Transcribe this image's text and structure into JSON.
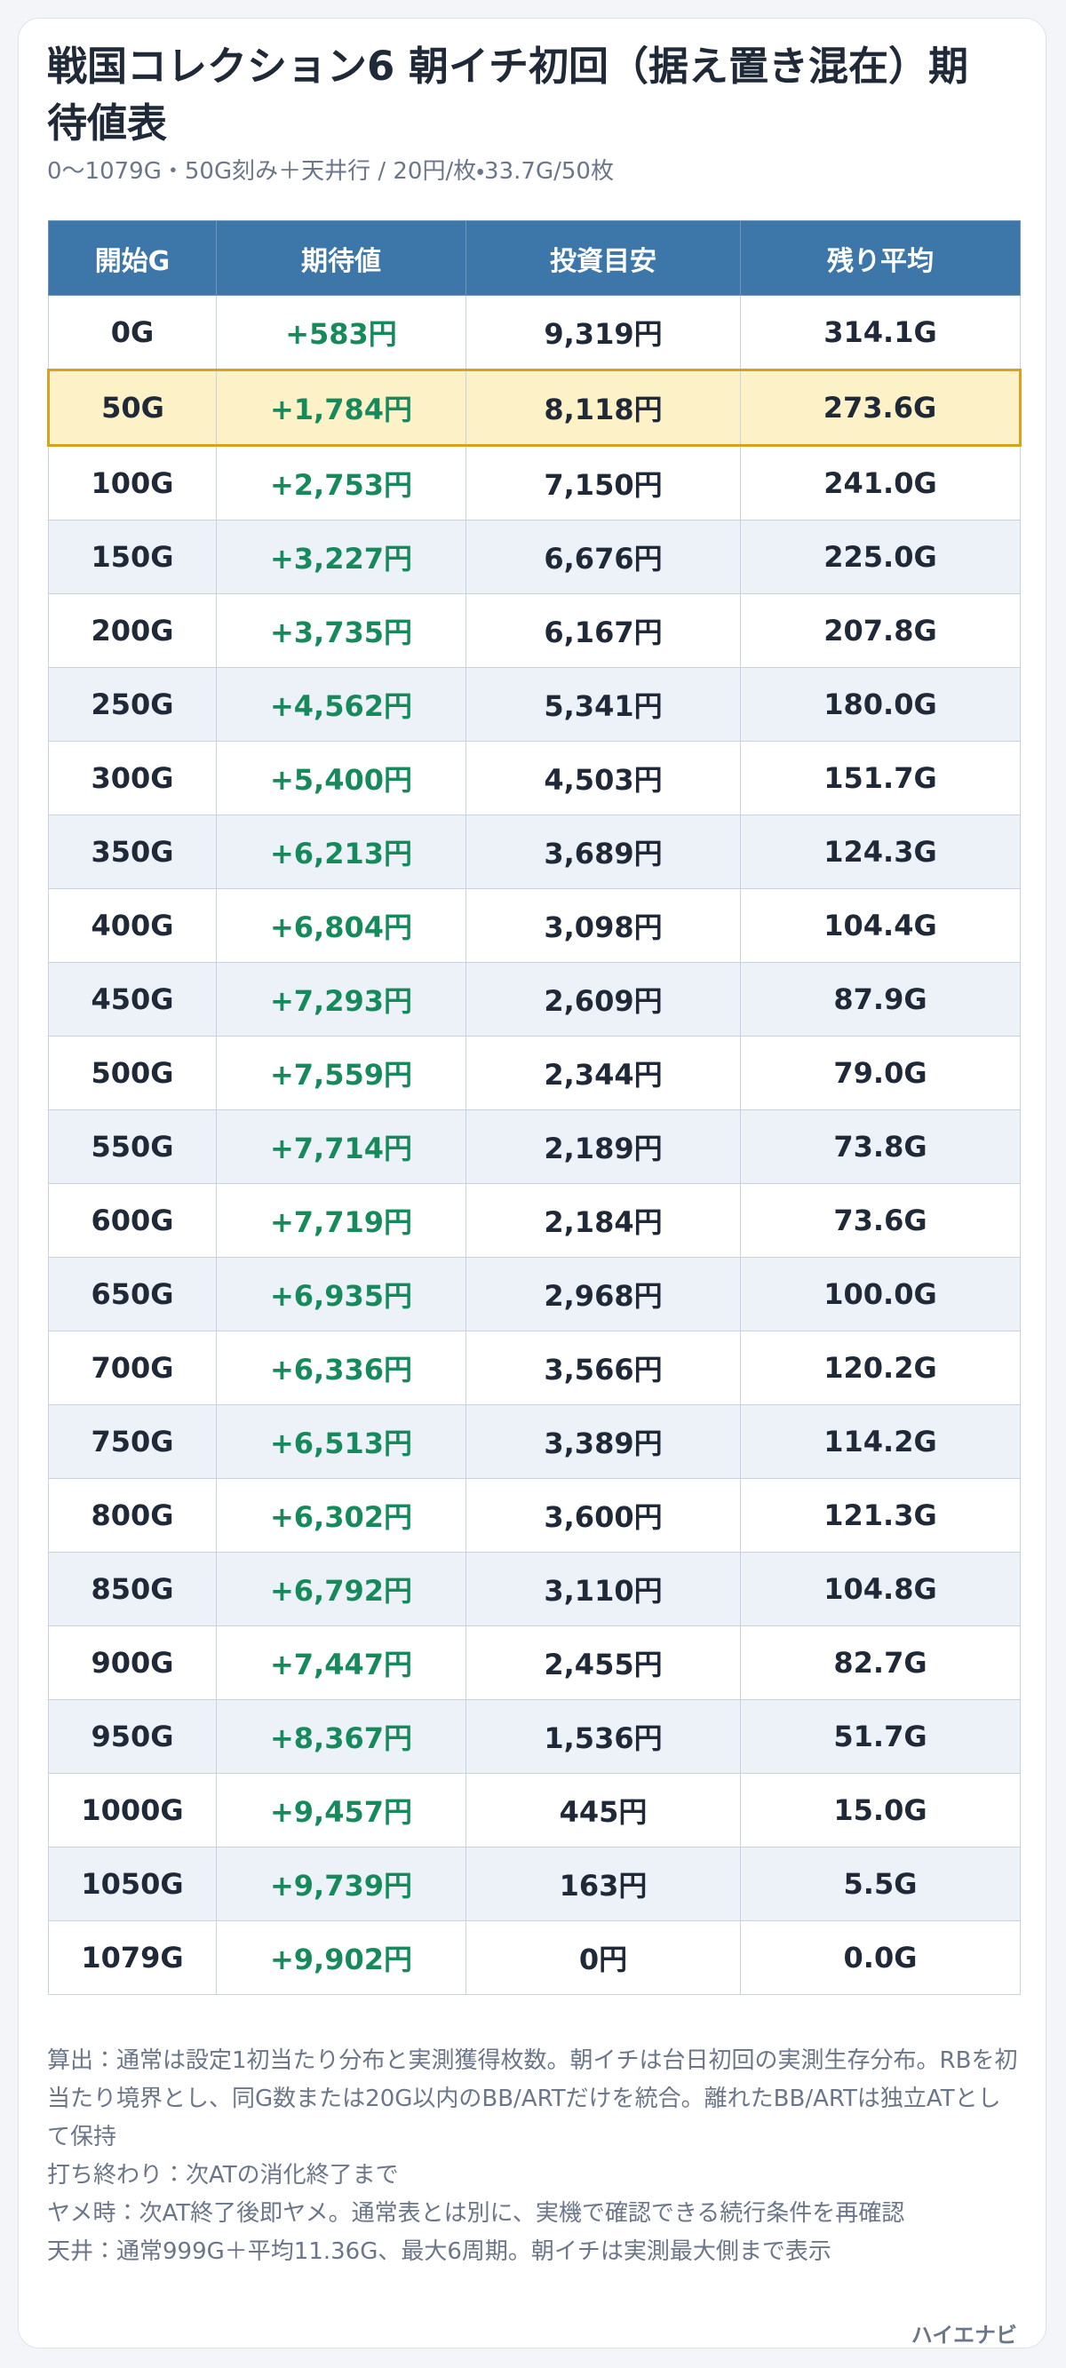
{
  "header": {
    "title": "戦国コレクション6 朝イチ初回（据え置き混在）期待値表",
    "subtitle": "0〜1079G・50G刻み＋天井行 / 20円/枚・33.7G/50枚"
  },
  "table": {
    "columns": [
      "開始G",
      "期待値",
      "投資目安",
      "残り平均"
    ],
    "highlight_row": 1,
    "rows": [
      [
        "0G",
        "+583円",
        "9,319円",
        "314.1G"
      ],
      [
        "50G",
        "+1,784円",
        "8,118円",
        "273.6G"
      ],
      [
        "100G",
        "+2,753円",
        "7,150円",
        "241.0G"
      ],
      [
        "150G",
        "+3,227円",
        "6,676円",
        "225.0G"
      ],
      [
        "200G",
        "+3,735円",
        "6,167円",
        "207.8G"
      ],
      [
        "250G",
        "+4,562円",
        "5,341円",
        "180.0G"
      ],
      [
        "300G",
        "+5,400円",
        "4,503円",
        "151.7G"
      ],
      [
        "350G",
        "+6,213円",
        "3,689円",
        "124.3G"
      ],
      [
        "400G",
        "+6,804円",
        "3,098円",
        "104.4G"
      ],
      [
        "450G",
        "+7,293円",
        "2,609円",
        "87.9G"
      ],
      [
        "500G",
        "+7,559円",
        "2,344円",
        "79.0G"
      ],
      [
        "550G",
        "+7,714円",
        "2,189円",
        "73.8G"
      ],
      [
        "600G",
        "+7,719円",
        "2,184円",
        "73.6G"
      ],
      [
        "650G",
        "+6,935円",
        "2,968円",
        "100.0G"
      ],
      [
        "700G",
        "+6,336円",
        "3,566円",
        "120.2G"
      ],
      [
        "750G",
        "+6,513円",
        "3,389円",
        "114.2G"
      ],
      [
        "800G",
        "+6,302円",
        "3,600円",
        "121.3G"
      ],
      [
        "850G",
        "+6,792円",
        "3,110円",
        "104.8G"
      ],
      [
        "900G",
        "+7,447円",
        "2,455円",
        "82.7G"
      ],
      [
        "950G",
        "+8,367円",
        "1,536円",
        "51.7G"
      ],
      [
        "1000G",
        "+9,457円",
        "445円",
        "15.0G"
      ],
      [
        "1050G",
        "+9,739円",
        "163円",
        "5.5G"
      ],
      [
        "1079G",
        "+9,902円",
        "0円",
        "0.0G"
      ]
    ]
  },
  "notes": [
    "算出：通常は設定1初当たり分布と実測獲得枚数。朝イチは台日初回の実測生存分布。RBを初当たり境界とし、同G数または20G以内のBB/ARTだけを統合。離れたBB/ARTは独立ATとして保持",
    "打ち終わり：次ATの消化終了まで",
    "ヤメ時：次AT終了後即ヤメ。通常表とは別に、実機で確認できる続行条件を再確認",
    "天井：通常999G＋平均11.36G、最大6周期。朝イチは実測最大側まで表示"
  ],
  "footer": {
    "brand": "ハイエナビ"
  }
}
